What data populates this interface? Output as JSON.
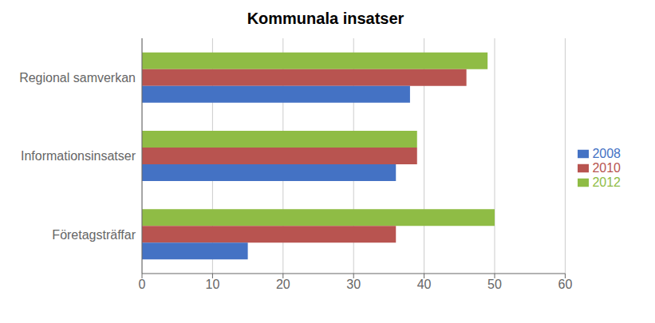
{
  "chart_data": {
    "type": "bar",
    "orientation": "horizontal",
    "title": "Kommunala insatser",
    "categories": [
      "Regional samverkan",
      "Informationsinsatser",
      "Företagsträffar"
    ],
    "series": [
      {
        "name": "2012",
        "color": "#8fbc45",
        "values": [
          49,
          39,
          50
        ]
      },
      {
        "name": "2010",
        "color": "#b85450",
        "values": [
          46,
          39,
          36
        ]
      },
      {
        "name": "2008",
        "color": "#4472c4",
        "values": [
          38,
          36,
          15
        ]
      }
    ],
    "xlim": [
      0,
      60
    ],
    "xticks": [
      0,
      10,
      20,
      30,
      40,
      50,
      60
    ],
    "grid": true,
    "legend": "right"
  }
}
